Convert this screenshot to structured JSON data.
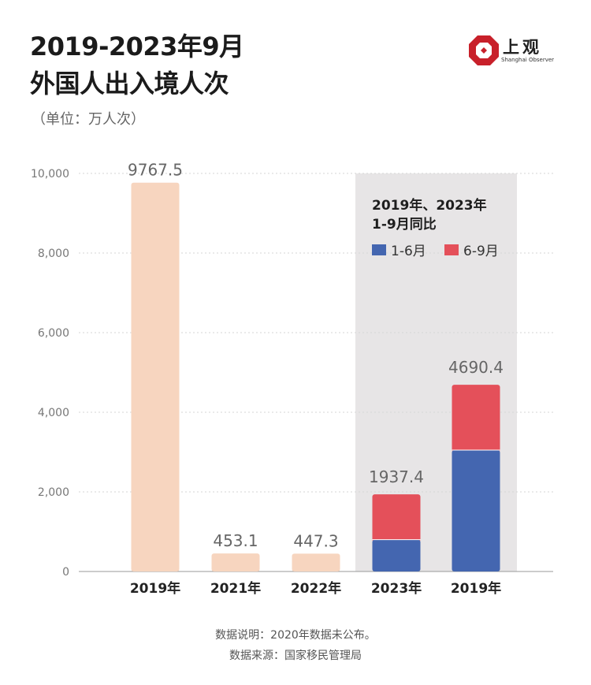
{
  "title": {
    "line1": "2019-2023年9月",
    "line2": "外国人出入境人次"
  },
  "unit": "（单位：万人次）",
  "logo": {
    "cn": "上观",
    "en": "Shanghai Observer"
  },
  "chart_data": {
    "type": "bar",
    "title": "",
    "ylim": [
      0,
      10000
    ],
    "yticks": [
      "0",
      "2,000",
      "4,000",
      "6,000",
      "8,000",
      "10,000"
    ],
    "ytick_values": [
      0,
      2000,
      4000,
      6000,
      8000,
      10000
    ],
    "categories": [
      "2019年",
      "2021年",
      "2022年",
      "2023年",
      "2019年"
    ],
    "annual": {
      "values": [
        9767.5,
        453.1,
        447.3,
        null,
        null
      ],
      "labels": [
        "9767.5",
        "453.1",
        "447.3",
        "",
        ""
      ],
      "color": "#f7d5bf"
    },
    "stacked": {
      "series": [
        {
          "name": "1-6月",
          "values": [
            null,
            null,
            null,
            800,
            3050
          ],
          "color": "#4466b0"
        },
        {
          "name": "6-9月",
          "values": [
            null,
            null,
            null,
            1137.4,
            1640.4
          ],
          "color": "#e4505a"
        }
      ],
      "totals": [
        null,
        null,
        null,
        1937.4,
        4690.4
      ],
      "total_labels": [
        "",
        "",
        "",
        "1937.4",
        "4690.4"
      ]
    },
    "highlight_box": {
      "title_line1": "2019年、2023年",
      "title_line2": "1-9月同比",
      "background": "#e7e5e6"
    },
    "grid": true,
    "legend": "inside highlight box, top"
  },
  "footer": {
    "note": "数据说明：2020年数据未公布。",
    "source": "数据来源：国家移民管理局"
  }
}
